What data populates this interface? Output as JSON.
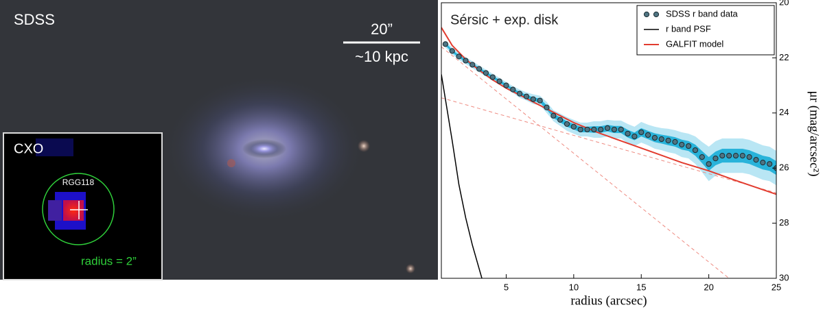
{
  "image_panel": {
    "label": "SDSS",
    "scale_angle": "20”",
    "scale_length": "~10 kpc",
    "inset": {
      "label": "CXO",
      "source": "RGG118",
      "radius_note": "radius = 2”"
    }
  },
  "chart_data": {
    "type": "profile",
    "title": "Sérsic + exp. disk",
    "xlabel": "radius (arcsec)",
    "ylabel": "μr (mag/arcsec²)",
    "xlim": [
      0.2,
      25
    ],
    "ylim": [
      20,
      30
    ],
    "y_inverted": true,
    "xticks": [
      5,
      10,
      15,
      20,
      25
    ],
    "yticks": [
      20,
      22,
      24,
      26,
      28,
      30
    ],
    "legend": "upper right",
    "data": {
      "name": "SDSS r band data",
      "color": "#4f7482",
      "band_color": "#29b3da",
      "outer_band_color": "#b9e6f4",
      "x": [
        0.5,
        1,
        1.5,
        2,
        2.5,
        3,
        3.5,
        4,
        4.5,
        5,
        5.5,
        6,
        6.5,
        7,
        7.5,
        8,
        8.5,
        9,
        9.5,
        10,
        10.5,
        11,
        11.5,
        12,
        12.5,
        13,
        13.5,
        14,
        14.5,
        15,
        15.5,
        16,
        16.5,
        17,
        17.5,
        18,
        18.5,
        19,
        19.5,
        20,
        20.5,
        21,
        21.5,
        22,
        22.5,
        23,
        23.5,
        24,
        24.5,
        25
      ],
      "values": [
        21.5,
        21.75,
        21.95,
        22.1,
        22.25,
        22.4,
        22.55,
        22.7,
        22.85,
        23.0,
        23.15,
        23.3,
        23.4,
        23.5,
        23.55,
        23.8,
        24.1,
        24.25,
        24.4,
        24.5,
        24.6,
        24.6,
        24.6,
        24.6,
        24.55,
        24.6,
        24.6,
        24.75,
        24.85,
        24.7,
        24.8,
        24.9,
        24.95,
        25.0,
        25.05,
        25.15,
        25.2,
        25.35,
        25.6,
        25.85,
        25.65,
        25.55,
        25.55,
        25.55,
        25.55,
        25.6,
        25.7,
        25.8,
        25.85,
        26.0
      ],
      "errors": [
        0.05,
        0.05,
        0.05,
        0.05,
        0.05,
        0.05,
        0.05,
        0.05,
        0.05,
        0.05,
        0.05,
        0.06,
        0.06,
        0.07,
        0.07,
        0.08,
        0.08,
        0.09,
        0.1,
        0.1,
        0.1,
        0.1,
        0.12,
        0.12,
        0.12,
        0.13,
        0.13,
        0.14,
        0.14,
        0.15,
        0.15,
        0.16,
        0.16,
        0.17,
        0.17,
        0.18,
        0.18,
        0.2,
        0.22,
        0.25,
        0.25,
        0.25,
        0.25,
        0.25,
        0.25,
        0.25,
        0.25,
        0.25,
        0.25,
        0.25
      ]
    },
    "series": [
      {
        "name": "r band PSF",
        "color": "#000000",
        "x": [
          0.2,
          0.5,
          1,
          1.5,
          2,
          2.5,
          3.2
        ],
        "values": [
          22.6,
          23.5,
          25.0,
          26.6,
          27.8,
          28.8,
          30
        ]
      },
      {
        "name": "GALFIT model",
        "color": "#e23b2e",
        "x": [
          0.2,
          1,
          2,
          3,
          4,
          5,
          6,
          7,
          8,
          9,
          10,
          11,
          12,
          14,
          16,
          18,
          20,
          22,
          25
        ],
        "values": [
          20.9,
          21.55,
          22.05,
          22.45,
          22.8,
          23.1,
          23.35,
          23.6,
          23.85,
          24.1,
          24.35,
          24.55,
          24.75,
          25.1,
          25.45,
          25.8,
          26.1,
          26.45,
          26.95
        ]
      }
    ],
    "components": [
      {
        "color": "#ee8a80",
        "x": [
          0.2,
          21.5
        ],
        "values": [
          21.6,
          30
        ]
      },
      {
        "color": "#ee8a80",
        "x": [
          0.2,
          25
        ],
        "values": [
          23.45,
          26.9
        ]
      }
    ]
  }
}
